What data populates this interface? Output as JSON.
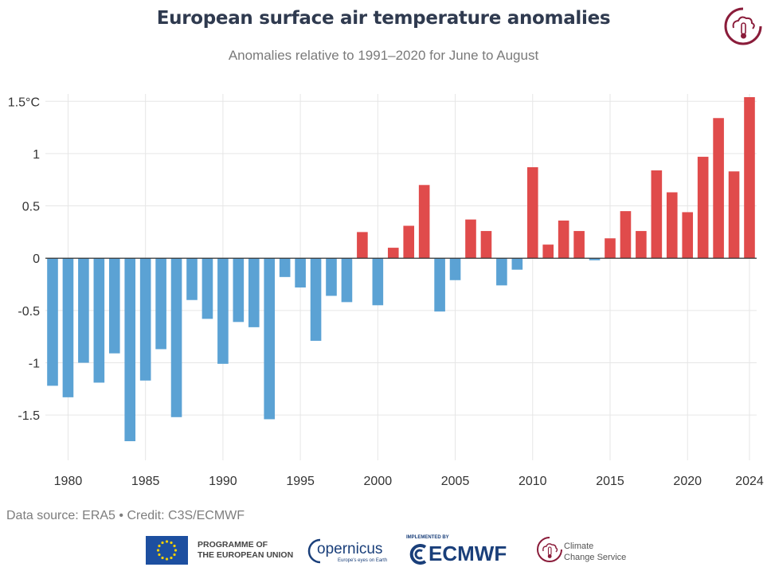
{
  "chart_data": {
    "type": "bar",
    "title": "European surface air temperature anomalies",
    "subtitle": "Anomalies relative to 1991–2020 for June to August",
    "xlabel": "",
    "ylabel": "",
    "x": [
      1979,
      1980,
      1981,
      1982,
      1983,
      1984,
      1985,
      1986,
      1987,
      1988,
      1989,
      1990,
      1991,
      1992,
      1993,
      1994,
      1995,
      1996,
      1997,
      1998,
      1999,
      2000,
      2001,
      2002,
      2003,
      2004,
      2005,
      2006,
      2007,
      2008,
      2009,
      2010,
      2011,
      2012,
      2013,
      2014,
      2015,
      2016,
      2017,
      2018,
      2019,
      2020,
      2021,
      2022,
      2023,
      2024
    ],
    "values": [
      -1.22,
      -1.33,
      -1.0,
      -1.19,
      -0.91,
      -1.75,
      -1.17,
      -0.87,
      -1.52,
      -0.4,
      -0.58,
      -1.01,
      -0.61,
      -0.66,
      -1.54,
      -0.18,
      -0.28,
      -0.79,
      -0.36,
      -0.42,
      0.25,
      -0.45,
      0.1,
      0.31,
      0.7,
      -0.51,
      -0.21,
      0.37,
      0.26,
      -0.26,
      -0.11,
      0.87,
      0.13,
      0.36,
      0.26,
      -0.02,
      0.19,
      0.45,
      0.26,
      0.84,
      0.63,
      0.44,
      0.97,
      1.34,
      0.83,
      1.54
    ],
    "x_ticks": [
      "1980",
      "1985",
      "1990",
      "1995",
      "2000",
      "2005",
      "2010",
      "2015",
      "2020",
      "2024"
    ],
    "x_tick_values": [
      1980,
      1985,
      1990,
      1995,
      2000,
      2005,
      2010,
      2015,
      2020,
      2024
    ],
    "y_ticks": [
      "1.5°C",
      "1",
      "0.5",
      "0",
      "-0.5",
      "-1",
      "-1.5"
    ],
    "y_tick_values": [
      1.5,
      1,
      0.5,
      0,
      -0.5,
      -1,
      -1.5
    ],
    "ylim": [
      -1.75,
      1.54
    ],
    "grid": true,
    "colors": {
      "positive": "#e04b4b",
      "negative": "#5ba2d4",
      "grid": "#e6e6e6",
      "zero": "#333333"
    }
  },
  "footer": {
    "credit": "Data source: ERA5 • Credit: C3S/ECMWF",
    "eu_line1": "PROGRAMME OF",
    "eu_line2": "THE EUROPEAN UNION",
    "copernicus": "opernicus",
    "copernicus_tagline": "Europe's eyes on Earth",
    "ecmwf_small": "IMPLEMENTED BY",
    "ecmwf": "ECMWF",
    "c3s_line1": "Climate",
    "c3s_line2": "Change Service"
  }
}
